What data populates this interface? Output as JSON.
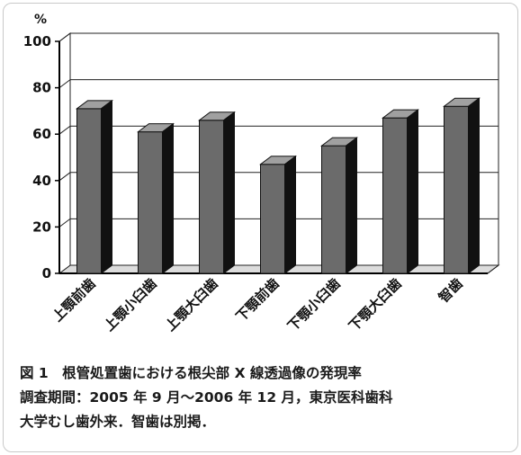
{
  "chart_data": {
    "type": "bar",
    "style": "3d",
    "y_unit": "%",
    "ylim": [
      0,
      100
    ],
    "yticks": [
      0,
      20,
      40,
      60,
      80,
      100
    ],
    "grid": true,
    "categories": [
      "上顎前歯",
      "上顎小臼歯",
      "上顎大臼歯",
      "下顎前歯",
      "下顎小臼歯",
      "下顎大臼歯",
      "智歯"
    ],
    "values": [
      71,
      61,
      66,
      47,
      55,
      67,
      72
    ],
    "colors": {
      "front": "#6b6b6b",
      "top": "#a0a0a0",
      "side": "#111111",
      "wall": "#dcdcdc"
    }
  },
  "caption": {
    "line1": "図 1　根管処置歯における根尖部 X 線透過像の発現率",
    "line2": "調査期間：2005 年 9 月～2006 年 12 月，東京医科歯科",
    "line3": "大学むし歯外来．智歯は別掲．"
  }
}
